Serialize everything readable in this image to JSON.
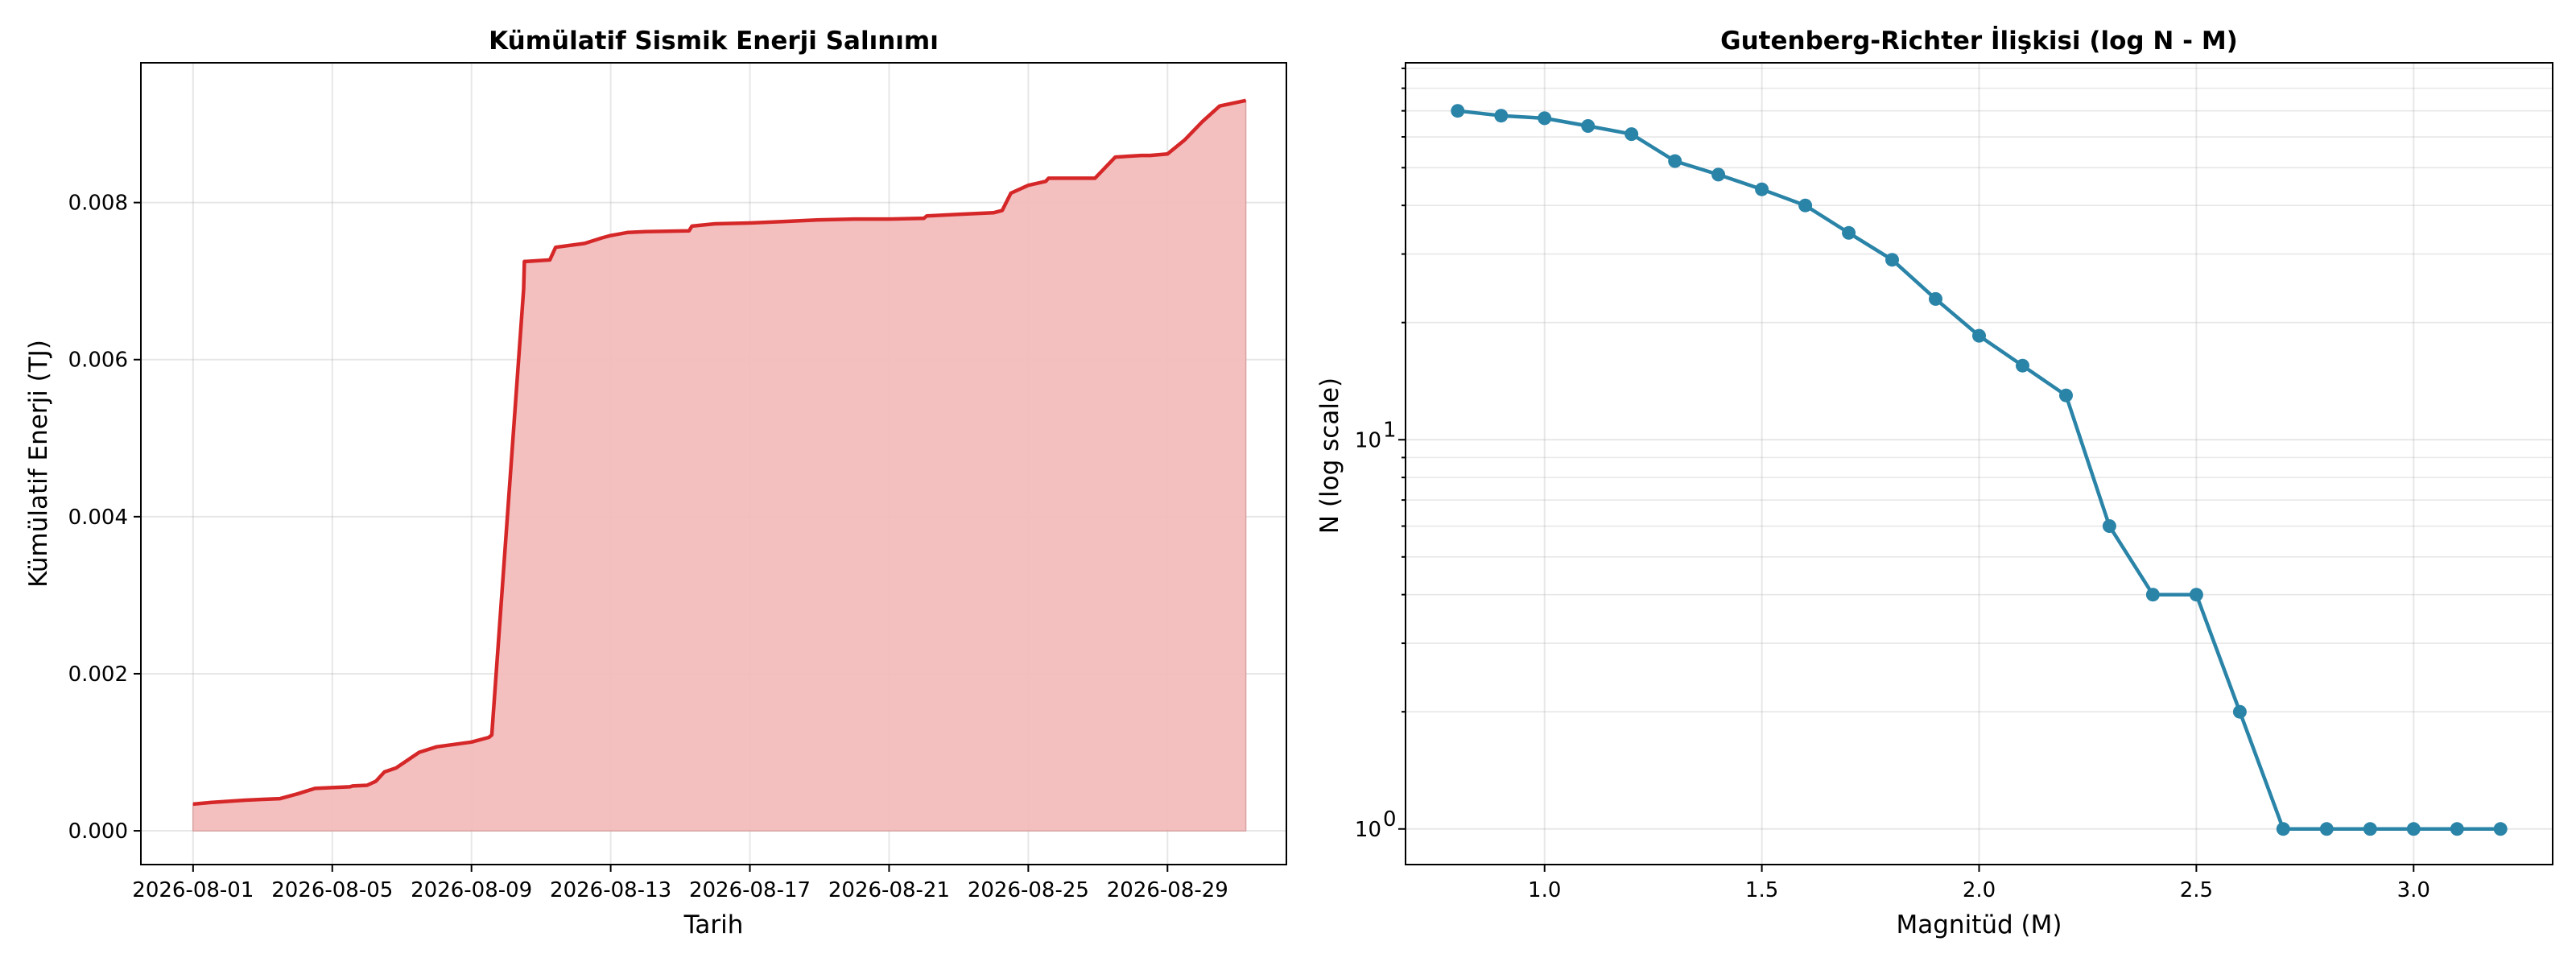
{
  "chart_data": [
    {
      "type": "area",
      "title": "Kümülatif Sismik Enerji Salınımı",
      "xlabel": "Tarih",
      "ylabel": "Kümülatif Enerji (TJ)",
      "x_tick_labels": [
        "2026-08-01",
        "2026-08-05",
        "2026-08-09",
        "2026-08-13",
        "2026-08-17",
        "2026-08-21",
        "2026-08-25",
        "2026-08-29"
      ],
      "y_tick_labels": [
        "0.000",
        "0.002",
        "0.004",
        "0.006",
        "0.008"
      ],
      "xlim": [
        "2026-07-30 12:00",
        "2026-09-01 10:00"
      ],
      "ylim": [
        -0.00043,
        0.00978
      ],
      "grid": true,
      "line_color": "#d62728",
      "fill_color": "#f2bcbc",
      "series": [
        {
          "x": [
            "2026-08-01 00:00",
            "2026-08-01 12:00",
            "2026-08-02 12:00",
            "2026-08-03 00:00",
            "2026-08-03 12:00",
            "2026-08-04 00:00",
            "2026-08-04 12:00",
            "2026-08-05 12:00",
            "2026-08-05 14:00",
            "2026-08-06 00:00",
            "2026-08-06 06:00",
            "2026-08-06 12:00",
            "2026-08-06 20:00",
            "2026-08-07 00:00",
            "2026-08-07 12:00",
            "2026-08-08 00:00",
            "2026-08-09 00:00",
            "2026-08-09 12:00",
            "2026-08-09 14:00",
            "2026-08-10 12:00",
            "2026-08-10 12:30",
            "2026-08-10 14:00",
            "2026-08-11 06:00",
            "2026-08-11 10:00",
            "2026-08-12 06:00",
            "2026-08-12 18:00",
            "2026-08-13 00:00",
            "2026-08-13 12:00",
            "2026-08-14 00:00",
            "2026-08-15 06:00",
            "2026-08-15 08:00",
            "2026-08-16 00:00",
            "2026-08-17 00:00",
            "2026-08-18 00:00",
            "2026-08-19 00:00",
            "2026-08-20 00:00",
            "2026-08-21 00:00",
            "2026-08-22 00:00",
            "2026-08-22 02:00",
            "2026-08-23 00:00",
            "2026-08-24 00:00",
            "2026-08-24 06:00",
            "2026-08-24 12:00",
            "2026-08-25 00:00",
            "2026-08-25 12:00",
            "2026-08-25 14:00",
            "2026-08-26 12:00",
            "2026-08-26 22:00",
            "2026-08-27 12:00",
            "2026-08-28 06:00",
            "2026-08-28 12:00",
            "2026-08-29 00:00",
            "2026-08-29 12:00",
            "2026-08-30 00:00",
            "2026-08-30 12:00",
            "2026-08-31 06:00"
          ],
          "values": [
            0.00034,
            0.00036,
            0.00039,
            0.0004,
            0.00041,
            0.00047,
            0.00054,
            0.00056,
            0.00057,
            0.00058,
            0.00063,
            0.00075,
            0.0008,
            0.00085,
            0.001,
            0.00107,
            0.00113,
            0.00119,
            0.00122,
            0.0069,
            0.00725,
            0.00725,
            0.00727,
            0.00743,
            0.00748,
            0.00755,
            0.00758,
            0.00762,
            0.00763,
            0.00764,
            0.0077,
            0.00773,
            0.00774,
            0.00776,
            0.00778,
            0.00779,
            0.00779,
            0.0078,
            0.00783,
            0.00785,
            0.00787,
            0.0079,
            0.00812,
            0.00822,
            0.00827,
            0.00831,
            0.00831,
            0.00831,
            0.00858,
            0.0086,
            0.0086,
            0.00862,
            0.0088,
            0.00903,
            0.00923,
            0.0093
          ]
        }
      ]
    },
    {
      "type": "line",
      "title": "Gutenberg-Richter İlişkisi (log N - M)",
      "xlabel": "Magnitüd (M)",
      "ylabel": "N (log scale)",
      "y_scale": "log",
      "x_tick_labels": [
        "1.0",
        "1.5",
        "2.0",
        "2.5",
        "3.0"
      ],
      "y_tick_labels": [
        "10",
        "10"
      ],
      "y_tick_exponents": [
        "0",
        "1"
      ],
      "xlim": [
        0.68,
        3.32
      ],
      "ylim": [
        0.81,
        93
      ],
      "grid": true,
      "line_color": "#2a84a8",
      "series": [
        {
          "x": [
            0.8,
            0.9,
            1.0,
            1.1,
            1.2,
            1.3,
            1.4,
            1.5,
            1.6,
            1.7,
            1.8,
            1.9,
            2.0,
            2.1,
            2.2,
            2.3,
            2.4,
            2.5,
            2.6,
            2.7,
            2.8,
            2.9,
            3.0,
            3.1,
            3.2
          ],
          "values": [
            70,
            68,
            67,
            64,
            61,
            52,
            48,
            44,
            40,
            34,
            29,
            23,
            18.5,
            15.5,
            13,
            6,
            4,
            4,
            2,
            1,
            1,
            1,
            1,
            1,
            1
          ]
        }
      ]
    }
  ]
}
